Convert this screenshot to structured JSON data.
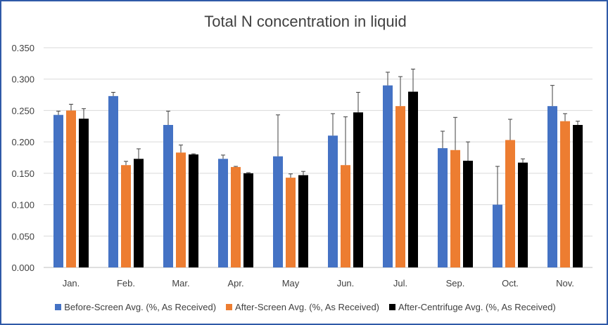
{
  "chart_data": {
    "type": "bar",
    "title": "Total N concentration in liquid",
    "xlabel": "",
    "ylabel": "",
    "categories": [
      "Jan.",
      "Feb.",
      "Mar.",
      "Apr.",
      "May",
      "Jun.",
      "Jul.",
      "Sep.",
      "Oct.",
      "Nov."
    ],
    "ylim": [
      0,
      0.35
    ],
    "yticks": [
      "0.000",
      "0.050",
      "0.100",
      "0.150",
      "0.200",
      "0.250",
      "0.300",
      "0.350"
    ],
    "grid": true,
    "legend_position": "bottom",
    "series": [
      {
        "name": "Before-Screen Avg. (%, As Received)",
        "color": "#4472c4",
        "values": [
          0.243,
          0.273,
          0.227,
          0.173,
          0.177,
          0.21,
          0.29,
          0.19,
          0.1,
          0.257
        ],
        "error": [
          0.006,
          0.006,
          0.022,
          0.006,
          0.066,
          0.035,
          0.021,
          0.027,
          0.061,
          0.033
        ]
      },
      {
        "name": "After-Screen Avg. (%, As Received)",
        "color": "#ed7d31",
        "values": [
          0.25,
          0.163,
          0.183,
          0.16,
          0.143,
          0.163,
          0.257,
          0.187,
          0.203,
          0.233
        ],
        "error": [
          0.01,
          0.006,
          0.012,
          0.001,
          0.006,
          0.077,
          0.047,
          0.052,
          0.033,
          0.012
        ]
      },
      {
        "name": "After-Centrifuge Avg. (%, As Received)",
        "color": "#000000",
        "values": [
          0.237,
          0.173,
          0.18,
          0.15,
          0.147,
          0.247,
          0.28,
          0.17,
          0.167,
          0.227
        ],
        "error": [
          0.016,
          0.016,
          0.001,
          0.001,
          0.006,
          0.032,
          0.036,
          0.03,
          0.006,
          0.006
        ]
      }
    ]
  }
}
